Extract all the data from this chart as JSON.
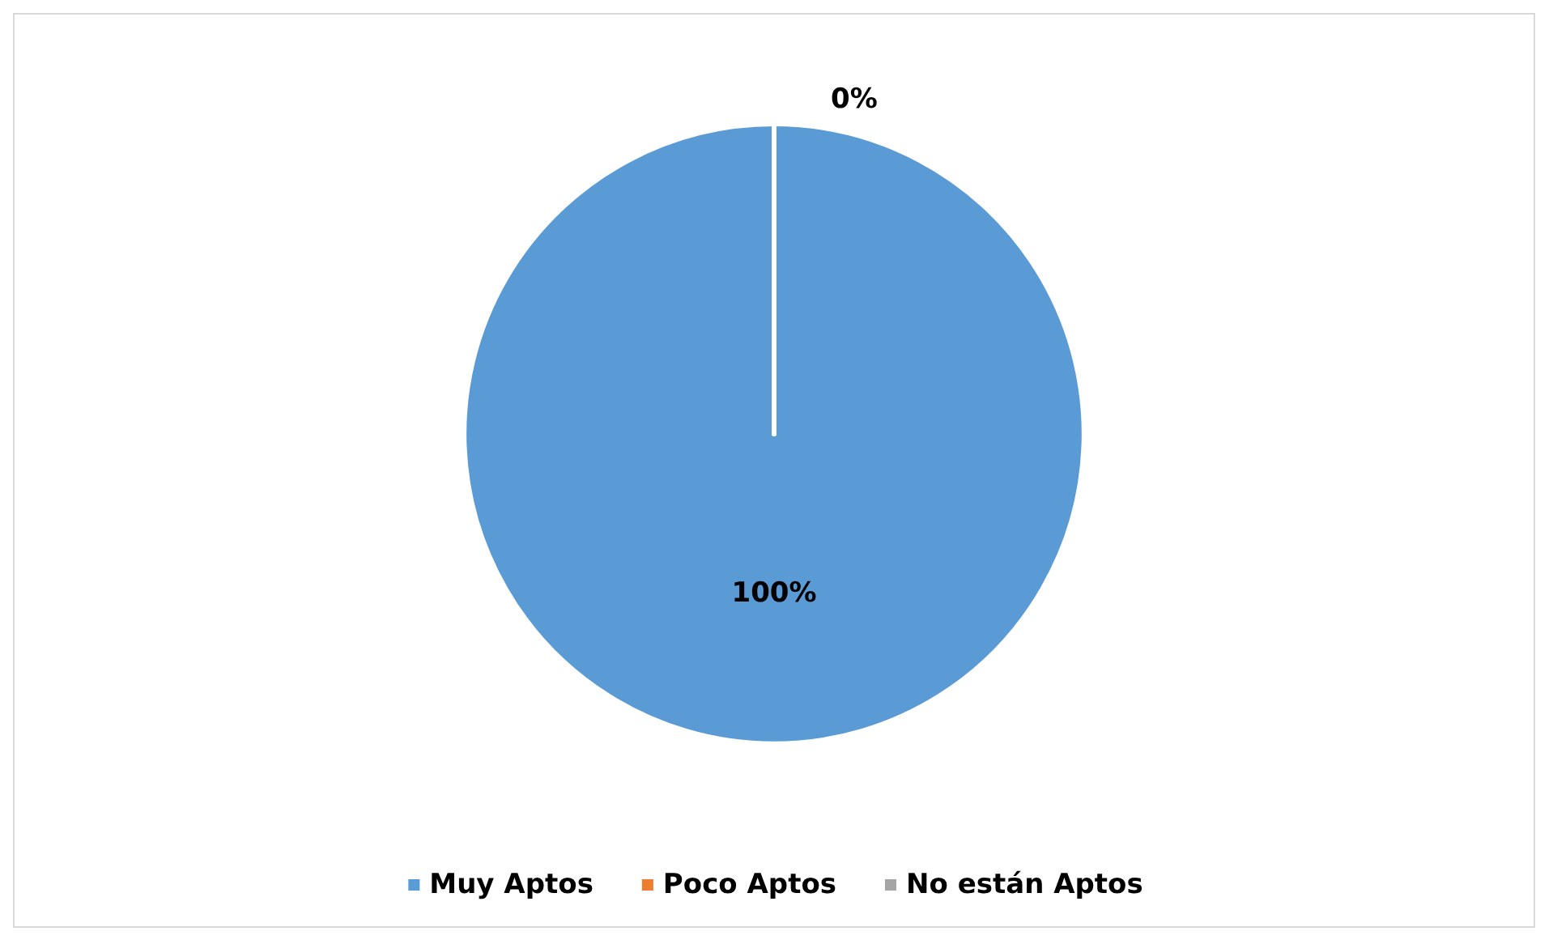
{
  "chart_data": {
    "type": "pie",
    "categories": [
      "Muy Aptos",
      "Poco Aptos",
      "No están Aptos"
    ],
    "values": [
      100,
      0,
      0
    ],
    "colors": [
      "#5b9bd5",
      "#ed7d31",
      "#a5a5a5"
    ],
    "value_labels": [
      "100%",
      "0%",
      null
    ],
    "legend": "bottom"
  }
}
